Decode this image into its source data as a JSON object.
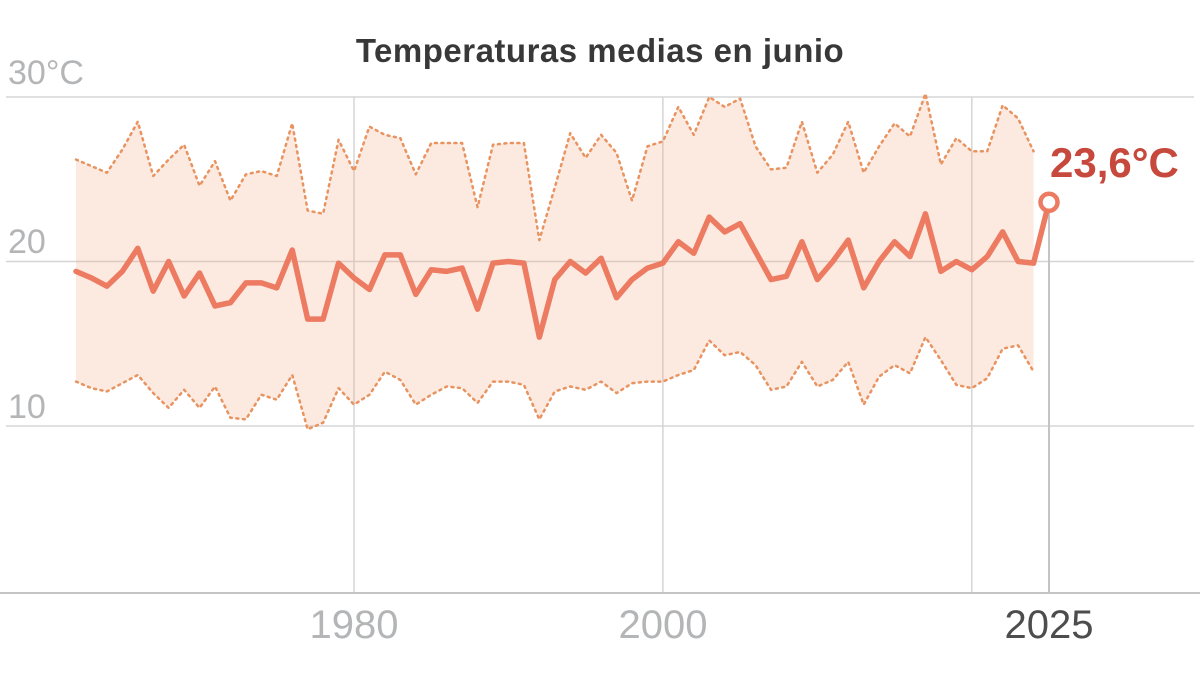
{
  "chart_data": {
    "type": "line",
    "title": "Temperaturas medias en junio",
    "unit": "°C",
    "annotation": {
      "label": "23,6°C",
      "year": 2025,
      "value": 23.6
    },
    "y_ticks": [
      {
        "value": 30,
        "label": "30°C"
      },
      {
        "value": 20,
        "label": "20"
      },
      {
        "value": 10,
        "label": "10"
      }
    ],
    "x_ticks": [
      {
        "year": 1980,
        "label": "1980"
      },
      {
        "year": 2000,
        "label": "2000"
      },
      {
        "year": 2025,
        "label": "2025"
      }
    ],
    "x_gridline_years": [
      1980,
      2000,
      2020
    ],
    "ylim": [
      9,
      31
    ],
    "xlim": [
      1962,
      2025
    ],
    "band_end_year": 2024,
    "legend": "none",
    "grid": "on",
    "years": [
      1962,
      1963,
      1964,
      1965,
      1966,
      1967,
      1968,
      1969,
      1970,
      1971,
      1972,
      1973,
      1974,
      1975,
      1976,
      1977,
      1978,
      1979,
      1980,
      1981,
      1982,
      1983,
      1984,
      1985,
      1986,
      1987,
      1988,
      1989,
      1990,
      1991,
      1992,
      1993,
      1994,
      1995,
      1996,
      1997,
      1998,
      1999,
      2000,
      2001,
      2002,
      2003,
      2004,
      2005,
      2006,
      2007,
      2008,
      2009,
      2010,
      2011,
      2012,
      2013,
      2014,
      2015,
      2016,
      2017,
      2018,
      2019,
      2020,
      2021,
      2022,
      2023,
      2024,
      2025
    ],
    "series": [
      {
        "name": "media",
        "style": "solid",
        "values": [
          19.4,
          19.0,
          18.5,
          19.4,
          20.8,
          18.2,
          20.0,
          17.9,
          19.3,
          17.3,
          17.5,
          18.7,
          18.7,
          18.4,
          20.7,
          16.5,
          16.5,
          19.9,
          19.0,
          18.3,
          20.4,
          20.4,
          18.0,
          19.5,
          19.4,
          19.6,
          17.1,
          19.9,
          20.0,
          19.9,
          15.4,
          18.9,
          20.0,
          19.3,
          20.2,
          17.8,
          18.9,
          19.6,
          19.9,
          21.2,
          20.5,
          22.7,
          21.8,
          22.3,
          20.6,
          18.9,
          19.1,
          21.2,
          18.9,
          20.0,
          21.3,
          18.4,
          20.0,
          21.2,
          20.3,
          22.9,
          19.4,
          20.0,
          19.5,
          20.3,
          21.8,
          20.0,
          19.9,
          23.6
        ]
      },
      {
        "name": "máxima",
        "style": "dotted",
        "values": [
          26.2,
          25.8,
          25.4,
          26.8,
          28.5,
          25.2,
          26.2,
          27.1,
          24.6,
          26.1,
          23.7,
          25.3,
          25.5,
          25.2,
          28.4,
          23.1,
          22.9,
          27.4,
          25.5,
          28.2,
          27.7,
          27.5,
          25.3,
          27.2,
          27.2,
          27.2,
          23.3,
          27.1,
          27.2,
          27.2,
          21.3,
          24.5,
          27.8,
          26.3,
          27.7,
          26.6,
          23.7,
          27.0,
          27.3,
          29.4,
          27.7,
          30.0,
          29.4,
          29.9,
          27.0,
          25.6,
          25.7,
          28.5,
          25.4,
          26.5,
          28.5,
          25.4,
          27.0,
          28.4,
          27.6,
          30.2,
          25.9,
          27.5,
          26.7,
          26.7,
          29.5,
          28.7,
          26.7,
          null
        ]
      },
      {
        "name": "mínima",
        "style": "dotted",
        "values": [
          12.7,
          12.3,
          12.1,
          12.6,
          13.1,
          12.0,
          11.1,
          12.2,
          11.1,
          12.4,
          10.5,
          10.4,
          11.9,
          11.6,
          13.1,
          9.8,
          10.2,
          12.3,
          11.3,
          11.9,
          13.3,
          12.8,
          11.3,
          11.9,
          12.4,
          12.3,
          11.4,
          12.7,
          12.7,
          12.5,
          10.4,
          12.1,
          12.4,
          12.2,
          12.7,
          12.0,
          12.6,
          12.7,
          12.7,
          13.1,
          13.4,
          15.2,
          14.3,
          14.5,
          13.7,
          12.2,
          12.4,
          13.9,
          12.4,
          12.8,
          13.9,
          11.3,
          13.0,
          13.7,
          13.2,
          15.4,
          14.0,
          12.5,
          12.3,
          12.9,
          14.7,
          14.9,
          13.3,
          null
        ]
      }
    ],
    "colors": {
      "mean_line": "#ec7b62",
      "band_edge_dotted": "#e89360",
      "band_fill": "rgba(242,170,130,0.25)",
      "annotation_text": "#c7483c",
      "gridline": "#d5d5d5",
      "axis_line": "#c4c4c4",
      "tick_label": "#b4b5b7",
      "tick_label_2025": "#4d4d4d",
      "title_text": "#383838",
      "marker_fill": "#ffffff"
    }
  }
}
